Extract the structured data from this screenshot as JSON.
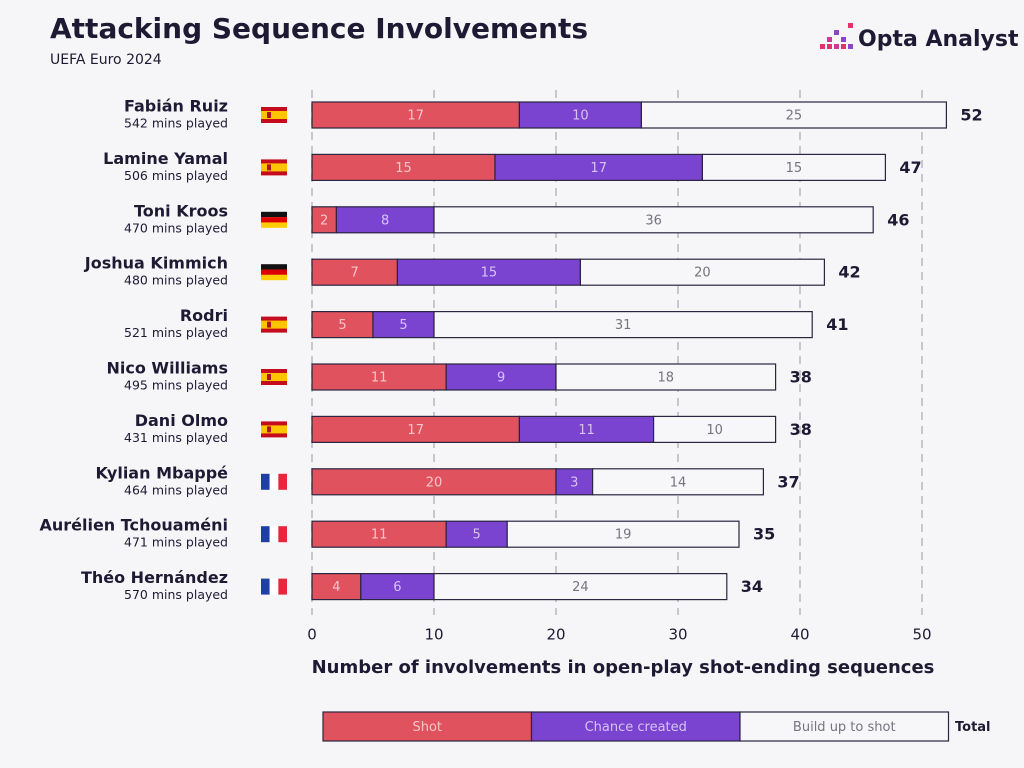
{
  "brand": "Opta Analyst",
  "chart_data": {
    "type": "stacked-bar",
    "orientation": "horizontal",
    "title": "Attacking Sequence Involvements",
    "subtitle": "UEFA Euro 2024",
    "categories": [
      "Fabián Ruiz",
      "Lamine Yamal",
      "Toni Kroos",
      "Joshua Kimmich",
      "Rodri",
      "Nico Williams",
      "Dani Olmo",
      "Kylian Mbappé",
      "Aurélien Tchouaméni",
      "Théo Hernández"
    ],
    "category_sublabels": [
      "542 mins played",
      "506 mins played",
      "470 mins played",
      "480 mins played",
      "521 mins played",
      "495 mins played",
      "431 mins played",
      "464 mins played",
      "471 mins played",
      "570 mins played"
    ],
    "series": [
      {
        "name": "Shot",
        "color": "#e0535e",
        "values": [
          17,
          15,
          2,
          7,
          5,
          11,
          17,
          20,
          11,
          4
        ]
      },
      {
        "name": "Chance created",
        "color": "#7a43d0",
        "values": [
          10,
          17,
          8,
          15,
          5,
          9,
          11,
          3,
          5,
          6
        ]
      },
      {
        "name": "Build up to shot",
        "color": "#f7f7f9",
        "values": [
          25,
          15,
          36,
          20,
          31,
          18,
          10,
          14,
          19,
          24
        ]
      }
    ],
    "totals": [
      52,
      47,
      46,
      42,
      41,
      38,
      38,
      37,
      35,
      34
    ],
    "total_label": "Total",
    "xlabel": "Number of involvements in open-play shot-ending sequences",
    "xlim": [
      0,
      52
    ],
    "xticks": [
      0,
      10,
      20,
      30,
      40,
      50
    ],
    "grid": true
  }
}
